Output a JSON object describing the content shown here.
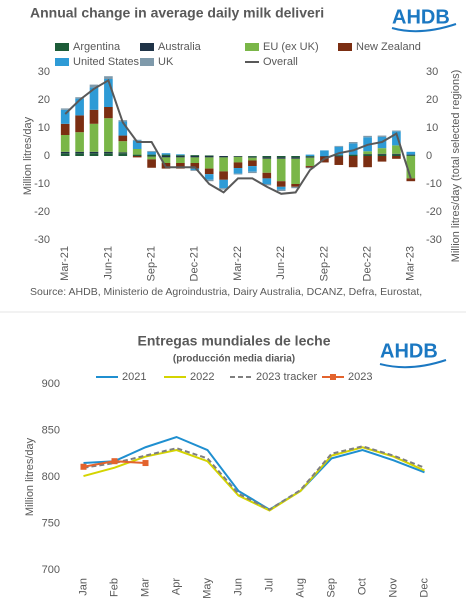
{
  "chart_data": [
    {
      "type": "stacked_bar_line",
      "title": "Annual change in average daily milk deliveri",
      "logo": "AHDB",
      "ylabel": "Million litres/day",
      "y2label": "Million litres/day (total selected regions)",
      "source": "Source: AHDB, Ministerio de Agroindustria, Dairy Australia, DCANZ, Defra, Eurostat,",
      "categories": [
        "Mar-21",
        null,
        null,
        "Jun-21",
        null,
        null,
        "Sep-21",
        null,
        null,
        "Dec-21",
        null,
        null,
        "Mar-22",
        null,
        null,
        "Jun-22",
        null,
        null,
        "Sep-22",
        null,
        null,
        "Dec-22",
        null,
        null,
        "Mar-23"
      ],
      "ylim": [
        -30,
        30
      ],
      "yticks": [
        -30,
        -20,
        -10,
        0,
        10,
        20,
        30
      ],
      "y2lim": [
        -30,
        30
      ],
      "y2ticks": [
        -30,
        -20,
        -10,
        0,
        10,
        20,
        30
      ],
      "grid": false,
      "series": [
        {
          "name": "Argentina",
          "color": "#1d5c38",
          "values": [
            1,
            1,
            1,
            1,
            1,
            0.5,
            0.5,
            0.5,
            0.3,
            0.3,
            0.2,
            0,
            0,
            -0.3,
            -0.5,
            -0.5,
            -0.5,
            -0.3,
            0,
            0.3,
            0.5,
            0.5,
            0.5,
            0.5,
            0.3
          ]
        },
        {
          "name": "Australia",
          "color": "#1f3347",
          "values": [
            0.5,
            0.5,
            0.5,
            0.5,
            0.3,
            0,
            -0.2,
            -0.5,
            -0.5,
            -0.5,
            -0.5,
            -0.5,
            -0.3,
            -0.3,
            -0.5,
            -0.5,
            -0.5,
            -0.3,
            -0.3,
            -0.2,
            0,
            0.2,
            0.3,
            0.3,
            0.2
          ]
        },
        {
          "name": "EU (ex UK)",
          "color": "#7ab648",
          "values": [
            6,
            7,
            10,
            12,
            4,
            2,
            -1,
            -2,
            -2,
            -2,
            -4,
            -5,
            -2,
            -1,
            -5,
            -8,
            -9,
            -3,
            0,
            0,
            0,
            1,
            2,
            3,
            -8
          ]
        },
        {
          "name": "New Zealand",
          "color": "#7b2e12",
          "values": [
            4,
            6,
            5,
            4,
            2,
            -0.5,
            -3,
            -2,
            -2,
            -2,
            -2,
            -3,
            -2,
            -2,
            -2,
            -2,
            -1,
            -0.5,
            -2,
            -3,
            -4,
            -4,
            -2,
            -1,
            -1
          ]
        },
        {
          "name": "United States",
          "color": "#2e9bd6",
          "values": [
            5,
            6,
            8,
            10,
            5,
            3,
            1,
            0.5,
            0.3,
            -0.5,
            -2,
            -3,
            -2,
            -2,
            -2,
            -1,
            0,
            0.5,
            2,
            3,
            4,
            5,
            4,
            5,
            1
          ]
        },
        {
          "name": "UK",
          "color": "#7f9aab",
          "values": [
            0.5,
            0.5,
            1,
            1,
            0.5,
            0.3,
            0.3,
            0,
            0,
            -0.3,
            -0.5,
            -0.5,
            -0.3,
            -0.5,
            -0.5,
            -0.5,
            -0.5,
            -0.3,
            0,
            0.3,
            0.5,
            0.5,
            0.5,
            0.3,
            0
          ]
        },
        {
          "name": "Overall",
          "color": "#595959",
          "kind": "line",
          "axis": "y2",
          "values": [
            15,
            20,
            24,
            27,
            12,
            5,
            5,
            -4,
            -4,
            -4,
            -10,
            -13,
            -8,
            -8,
            -11,
            -13.5,
            -13,
            -5,
            -1,
            1,
            2,
            4,
            5,
            8,
            -8
          ]
        }
      ]
    },
    {
      "type": "line",
      "title": "Entregas mundiales de leche",
      "subtitle": "(producción media diaria)",
      "logo": "AHDB",
      "ylabel": "Million litres/day",
      "categories": [
        "Jan",
        "Feb",
        "Mar",
        "Apr",
        "May",
        "Jun",
        "Jul",
        "Aug",
        "Sep",
        "Oct",
        "Nov",
        "Dec"
      ],
      "ylim": [
        700,
        900
      ],
      "yticks": [
        700,
        750,
        800,
        850,
        900
      ],
      "grid": false,
      "series": [
        {
          "name": "2021",
          "color": "#1f8fd0",
          "values": [
            815,
            817,
            832,
            843,
            829,
            785,
            765,
            785,
            820,
            829,
            818,
            805
          ]
        },
        {
          "name": "2022",
          "color": "#d4d400",
          "values": [
            801,
            810,
            822,
            829,
            817,
            780,
            764,
            785,
            823,
            832,
            822,
            807
          ]
        },
        {
          "name": "2023 tracker",
          "color": "#7f7f7f",
          "style": "dashed",
          "values": [
            810,
            815,
            823,
            831,
            820,
            782,
            765,
            786,
            825,
            833,
            823,
            810
          ]
        },
        {
          "name": "2023",
          "color": "#e3632d",
          "marker": "square",
          "values": [
            811,
            817,
            815,
            null,
            null,
            null,
            null,
            null,
            null,
            null,
            null,
            null
          ]
        }
      ]
    }
  ]
}
